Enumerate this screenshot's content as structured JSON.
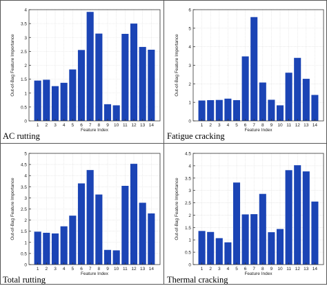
{
  "colors": {
    "bar": "#1b44b5",
    "grid": "#dcdcdc",
    "axis": "#333333"
  },
  "chart_data": [
    {
      "type": "bar",
      "caption": "AC rutting",
      "xlabel": "Feature Index",
      "ylabel": "Out-of-Bag Feature Importance",
      "ylim": [
        0,
        4
      ],
      "yticks": [
        "0",
        "0.5",
        "1",
        "1.5",
        "2",
        "2.5",
        "3",
        "3.5",
        "4"
      ],
      "categories": [
        "1",
        "2",
        "3",
        "4",
        "5",
        "6",
        "7",
        "8",
        "9",
        "10",
        "11",
        "12",
        "13",
        "14"
      ],
      "values": [
        1.45,
        1.48,
        1.25,
        1.37,
        1.85,
        2.55,
        3.92,
        3.14,
        0.6,
        0.56,
        3.13,
        3.5,
        2.66,
        2.56
      ],
      "grid": true
    },
    {
      "type": "bar",
      "caption": "Fatigue cracking",
      "xlabel": "Feature Index",
      "ylabel": "Out-of-Bag Feature Importance",
      "ylim": [
        0,
        6
      ],
      "yticks": [
        "0",
        "1",
        "2",
        "3",
        "4",
        "5",
        "6"
      ],
      "categories": [
        "1",
        "2",
        "3",
        "4",
        "5",
        "6",
        "7",
        "8",
        "9",
        "10",
        "11",
        "12",
        "13",
        "14"
      ],
      "values": [
        1.1,
        1.12,
        1.13,
        1.2,
        1.12,
        3.48,
        5.6,
        2.07,
        1.14,
        0.84,
        2.6,
        3.4,
        2.27,
        1.4
      ],
      "grid": true
    },
    {
      "type": "bar",
      "caption": "Total rutting",
      "xlabel": "Feature Index",
      "ylabel": "Out-of-Bag Feature Importance",
      "ylim": [
        0,
        5
      ],
      "yticks": [
        "0",
        "0.5",
        "1",
        "1.5",
        "2",
        "2.5",
        "3",
        "3.5",
        "4",
        "4.5",
        "5"
      ],
      "categories": [
        "1",
        "2",
        "3",
        "4",
        "5",
        "6",
        "7",
        "8",
        "9",
        "10",
        "11",
        "12",
        "13",
        "14"
      ],
      "values": [
        1.48,
        1.43,
        1.4,
        1.72,
        2.2,
        3.65,
        4.25,
        3.15,
        0.66,
        0.64,
        3.54,
        4.53,
        2.78,
        2.3
      ],
      "grid": true
    },
    {
      "type": "bar",
      "caption": "Thermal cracking",
      "xlabel": "Feature Index",
      "ylabel": "Out-of-Bag Feature Importance",
      "ylim": [
        0,
        4.5
      ],
      "yticks": [
        "0",
        "0.5",
        "1",
        "1.5",
        "2",
        "2.5",
        "3",
        "3.5",
        "4",
        "4.5"
      ],
      "categories": [
        "1",
        "2",
        "3",
        "4",
        "5",
        "6",
        "7",
        "8",
        "9",
        "10",
        "11",
        "12",
        "13",
        "14"
      ],
      "values": [
        1.36,
        1.32,
        1.07,
        0.9,
        3.32,
        2.03,
        2.04,
        2.86,
        1.31,
        1.44,
        3.82,
        4.02,
        3.77,
        2.55
      ],
      "grid": true
    }
  ]
}
